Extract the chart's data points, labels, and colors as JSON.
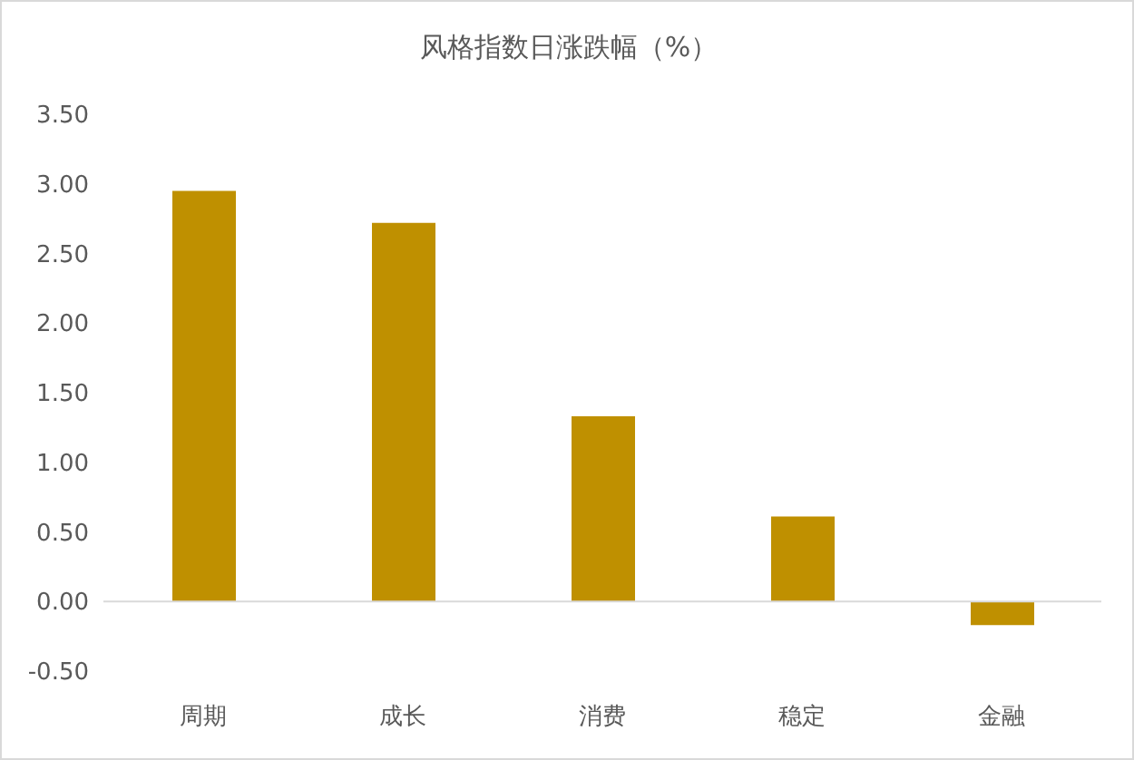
{
  "chart_data": {
    "type": "bar",
    "title": "风格指数日涨跌幅（%）",
    "categories": [
      "周期",
      "成长",
      "消费",
      "稳定",
      "金融"
    ],
    "values": [
      2.95,
      2.72,
      1.33,
      0.61,
      -0.17
    ],
    "color": "#bf9000",
    "ylim": [
      -0.5,
      3.5
    ],
    "yticks": [
      {
        "value": -0.5,
        "label": "-0.50"
      },
      {
        "value": 0,
        "label": "0.00"
      },
      {
        "value": 0.5,
        "label": "0.50"
      },
      {
        "value": 1,
        "label": "1.00"
      },
      {
        "value": 1.5,
        "label": "1.50"
      },
      {
        "value": 2,
        "label": "2.00"
      },
      {
        "value": 2.5,
        "label": "2.50"
      },
      {
        "value": 3,
        "label": "3.00"
      },
      {
        "value": 3.5,
        "label": "3.50"
      }
    ],
    "legend": false
  }
}
